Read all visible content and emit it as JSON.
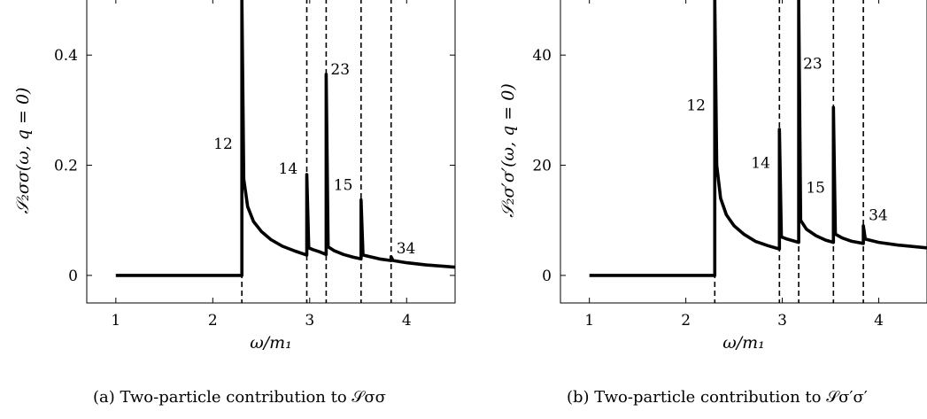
{
  "chart_data": [
    {
      "id": "a",
      "type": "line",
      "caption": "(a) Two-particle contribution to 𝒮σσ",
      "xlabel": "ω/m₁",
      "ylabel": "𝒮₂σσ(ω, q = 0)",
      "xlim": [
        0.7,
        4.5
      ],
      "ylim": [
        -0.05,
        0.5
      ],
      "xticks": [
        1,
        2,
        3,
        4
      ],
      "xtick_labels": [
        "1",
        "2",
        "3",
        "4"
      ],
      "yticks": [
        0,
        0.2,
        0.4
      ],
      "ytick_labels": [
        "0",
        "0.2",
        "0.4"
      ],
      "thresholds": [
        2.3,
        2.97,
        3.17,
        3.53,
        3.84
      ],
      "series": [
        {
          "x": [
            1.0,
            2.3,
            2.3,
            2.32,
            2.36,
            2.42,
            2.5,
            2.6,
            2.72,
            2.85,
            2.97,
            2.97,
            2.99,
            3.03,
            3.1,
            3.17,
            3.17,
            3.19,
            3.25,
            3.35,
            3.45,
            3.53,
            3.53,
            3.55,
            3.62,
            3.72,
            3.84,
            3.84,
            3.86,
            4.0,
            4.2,
            4.5
          ],
          "y": [
            0.0,
            0.0,
            0.5,
            0.175,
            0.125,
            0.098,
            0.08,
            0.065,
            0.053,
            0.044,
            0.037,
            0.183,
            0.05,
            0.047,
            0.043,
            0.038,
            0.365,
            0.052,
            0.045,
            0.038,
            0.033,
            0.03,
            0.137,
            0.037,
            0.034,
            0.03,
            0.027,
            0.034,
            0.027,
            0.023,
            0.019,
            0.015
          ]
        }
      ],
      "annotations": [
        {
          "text": "12",
          "x": 2.3,
          "y": 0.23
        },
        {
          "text": "14",
          "x": 2.97,
          "y": 0.185
        },
        {
          "text": "23",
          "x": 3.17,
          "y": 0.365
        },
        {
          "text": "15",
          "x": 3.53,
          "y": 0.155
        },
        {
          "text": "34",
          "x": 3.84,
          "y": 0.04
        }
      ]
    },
    {
      "id": "b",
      "type": "line",
      "caption": "(b) Two-particle contribution to 𝒮σ′σ′",
      "xlabel": "ω/m₁",
      "ylabel": "𝒮₂σ′σ′(ω, q = 0)",
      "xlim": [
        0.7,
        4.5
      ],
      "ylim": [
        -5,
        50
      ],
      "xticks": [
        1,
        2,
        3,
        4
      ],
      "xtick_labels": [
        "1",
        "2",
        "3",
        "4"
      ],
      "yticks": [
        0,
        20,
        40
      ],
      "ytick_labels": [
        "0",
        "20",
        "40"
      ],
      "thresholds": [
        2.3,
        2.97,
        3.17,
        3.53,
        3.84
      ],
      "series": [
        {
          "x": [
            1.0,
            2.3,
            2.3,
            2.32,
            2.36,
            2.42,
            2.5,
            2.6,
            2.72,
            2.85,
            2.97,
            2.97,
            2.99,
            3.05,
            3.17,
            3.17,
            3.19,
            3.25,
            3.35,
            3.45,
            3.53,
            3.53,
            3.55,
            3.62,
            3.72,
            3.84,
            3.84,
            3.86,
            4.0,
            4.2,
            4.5
          ],
          "y": [
            0.0,
            0.0,
            50.0,
            20.0,
            14.0,
            11.0,
            9.0,
            7.5,
            6.2,
            5.4,
            4.8,
            26.5,
            7.0,
            6.6,
            6.0,
            50.0,
            10.0,
            8.4,
            7.2,
            6.4,
            6.0,
            30.5,
            7.5,
            6.8,
            6.2,
            5.8,
            9.0,
            6.6,
            6.0,
            5.5,
            5.0
          ]
        }
      ],
      "annotations": [
        {
          "text": "12",
          "x": 2.3,
          "y": 30
        },
        {
          "text": "14",
          "x": 2.97,
          "y": 19.5
        },
        {
          "text": "23",
          "x": 3.17,
          "y": 37.5
        },
        {
          "text": "15",
          "x": 3.53,
          "y": 15
        },
        {
          "text": "34",
          "x": 3.84,
          "y": 10
        }
      ]
    }
  ]
}
